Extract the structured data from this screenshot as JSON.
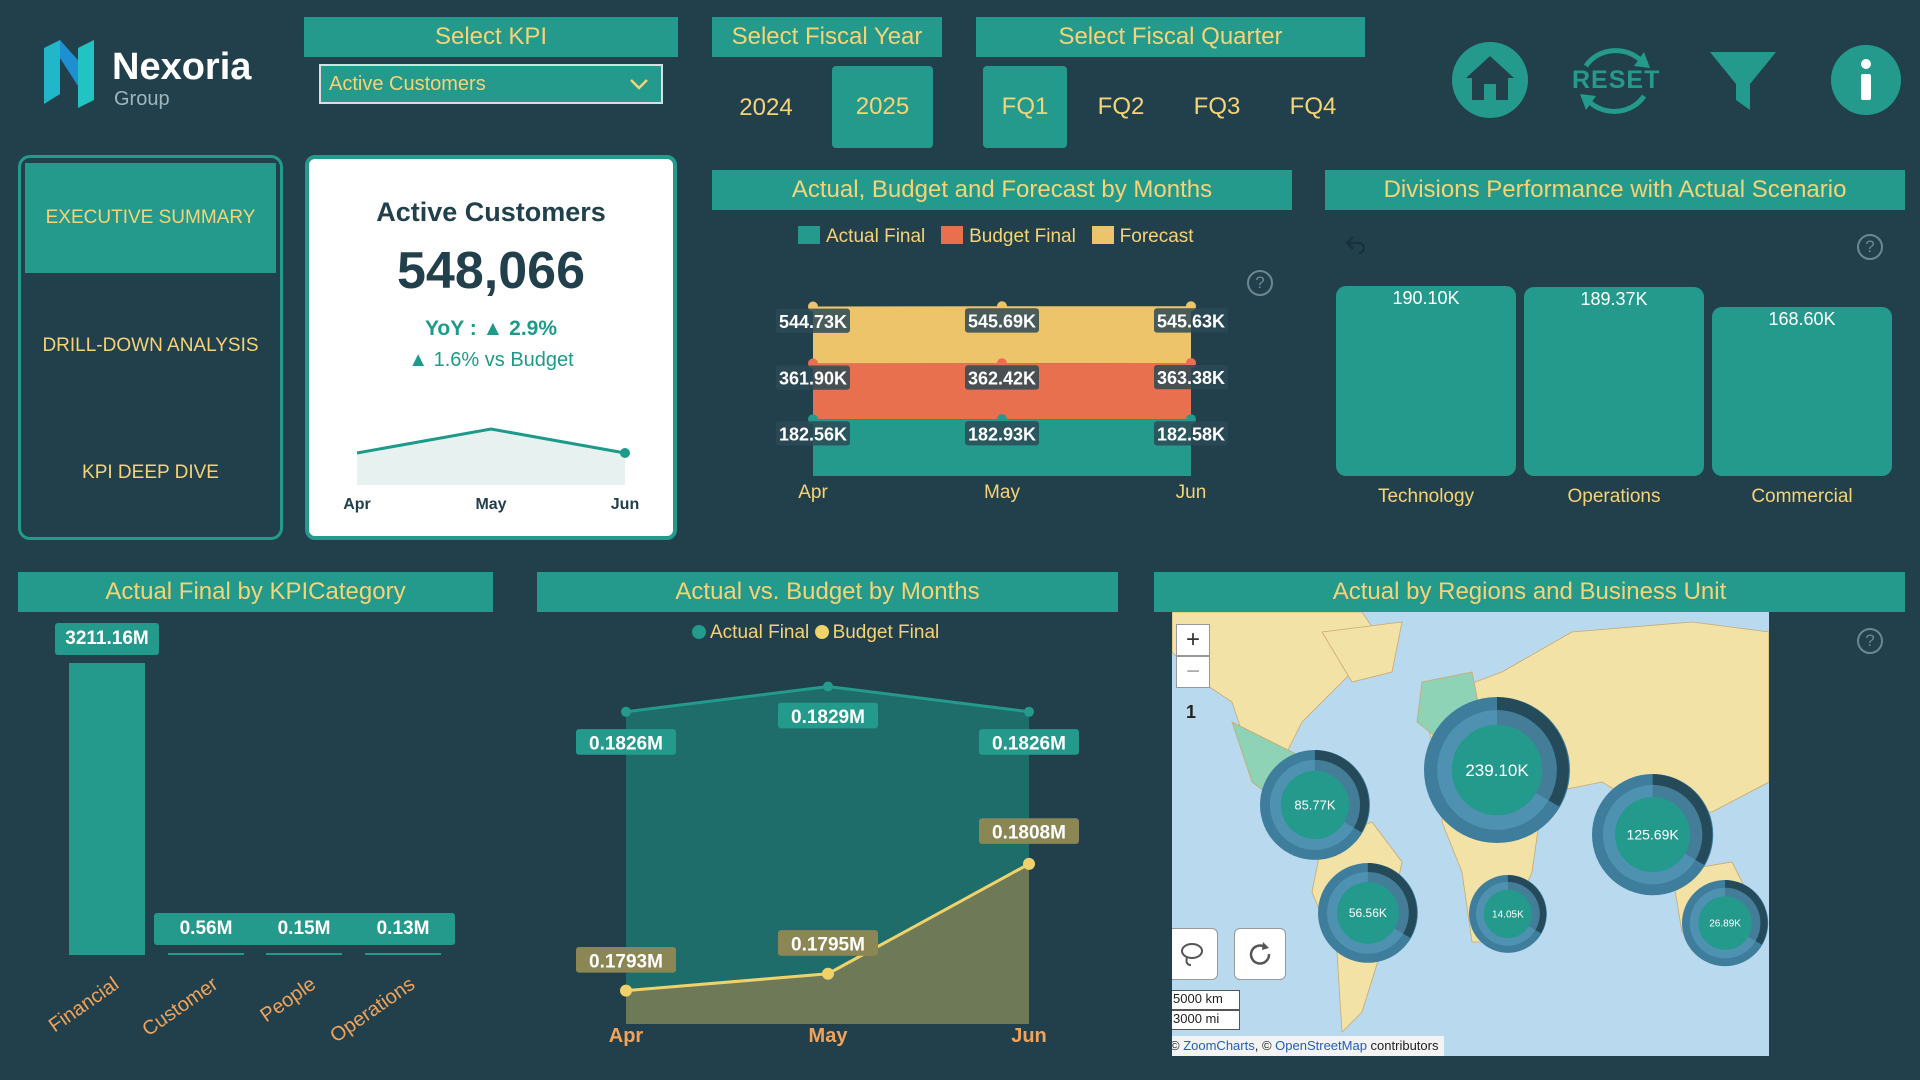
{
  "brand": {
    "name": "Nexoria",
    "sub": "Group"
  },
  "filters": {
    "kpi_header": "Select KPI",
    "kpi_value": "Active Customers",
    "year_header": "Select Fiscal Year",
    "years": [
      "2024",
      "2025"
    ],
    "year_selected": "2025",
    "quarter_header": "Select Fiscal Quarter",
    "quarters": [
      "FQ1",
      "FQ2",
      "FQ3",
      "FQ4"
    ],
    "quarter_selected": "FQ1"
  },
  "toolbar": {
    "reset_label": "RESET"
  },
  "nav": {
    "items": [
      "EXECUTIVE SUMMARY",
      "DRILL-DOWN ANALYSIS",
      "KPI DEEP DIVE"
    ],
    "active": "EXECUTIVE SUMMARY"
  },
  "kpi_card": {
    "title": "Active Customers",
    "value": "548,066",
    "yoy": "YoY : ▲ 2.9%",
    "vs_budget": "▲ 1.6% vs Budget",
    "spark_labels": [
      "Apr",
      "May",
      "Jun"
    ],
    "spark_values": [
      0.1826,
      0.1829,
      0.1826
    ]
  },
  "colors": {
    "bg": "#22404c",
    "teal": "#249a8d",
    "gold": "#f5d377",
    "actual": "#249a8d",
    "budget": "#e8704e",
    "forecast": "#eec46a",
    "budget_line": "#f0d26a",
    "orange_text": "#f0a35a"
  },
  "panels": {
    "abf_title": "Actual, Budget and Forecast by Months",
    "divisions_title": "Divisions Performance with Actual Scenario",
    "kpicat_title": "Actual Final by KPICategory",
    "avb_title": "Actual vs. Budget by Months",
    "map_title": "Actual by Regions and Business Unit"
  },
  "chart_data": [
    {
      "id": "abf",
      "type": "area",
      "title": "Actual, Budget and Forecast by Months",
      "categories": [
        "Apr",
        "May",
        "Jun"
      ],
      "stacked": true,
      "series": [
        {
          "name": "Actual Final",
          "values": [
            182.56,
            182.93,
            182.58
          ],
          "labels": [
            "182.56K",
            "182.93K",
            "182.58K"
          ]
        },
        {
          "name": "Budget Final",
          "values": [
            179.34,
            179.49,
            180.8
          ],
          "labels": [
            "361.90K",
            "362.42K",
            "363.38K"
          ]
        },
        {
          "name": "Forecast",
          "values": [
            182.83,
            183.27,
            182.25
          ],
          "labels": [
            "544.73K",
            "545.69K",
            "545.63K"
          ]
        }
      ],
      "legend": [
        "Actual Final",
        "Budget Final",
        "Forecast"
      ],
      "ylim": [
        0,
        600
      ]
    },
    {
      "id": "divisions",
      "type": "bar",
      "title": "Divisions Performance with Actual Scenario",
      "categories": [
        "Technology",
        "Operations",
        "Commercial"
      ],
      "values": [
        190.1,
        189.37,
        168.6
      ],
      "labels": [
        "190.10K",
        "189.37K",
        "168.60K"
      ],
      "ylim": [
        0,
        200
      ]
    },
    {
      "id": "kpicat",
      "type": "bar",
      "title": "Actual Final by KPICategory",
      "categories": [
        "Financial",
        "Customer",
        "People",
        "Operations"
      ],
      "values": [
        3211.16,
        0.56,
        0.15,
        0.13
      ],
      "labels": [
        "3211.16M",
        "0.56M",
        "0.15M",
        "0.13M"
      ],
      "ylim": [
        0,
        3211.16
      ]
    },
    {
      "id": "avb",
      "type": "area",
      "title": "Actual vs. Budget by Months",
      "categories": [
        "Apr",
        "May",
        "Jun"
      ],
      "series": [
        {
          "name": "Actual Final",
          "values": [
            0.1826,
            0.1829,
            0.1826
          ],
          "labels": [
            "0.1826M",
            "0.1829M",
            "0.1826M"
          ]
        },
        {
          "name": "Budget Final",
          "values": [
            0.1793,
            0.1795,
            0.1808
          ],
          "labels": [
            "0.1793M",
            "0.1795M",
            "0.1808M"
          ]
        }
      ],
      "legend": [
        "Actual Final",
        "Budget Final"
      ],
      "ylim": [
        0.179,
        0.183
      ]
    }
  ],
  "map": {
    "bubbles": [
      {
        "label": "239.10K",
        "value": 239.1
      },
      {
        "label": "125.69K",
        "value": 125.69
      },
      {
        "label": "85.77K",
        "value": 85.77
      },
      {
        "label": "56.56K",
        "value": 56.56
      },
      {
        "label": "26.89K",
        "value": 26.89
      },
      {
        "label": "14.05K",
        "value": 14.05
      }
    ],
    "zoom_in": "+",
    "zoom_out": "−",
    "marker": "1",
    "scale_km": "5000 km",
    "scale_mi": "3000 mi",
    "attribution_zc": "ZoomCharts",
    "attribution_osm": "OpenStreetMap",
    "attribution_copy1": "© ",
    "attribution_copy2": ", © ",
    "attribution_tail": " contributors"
  }
}
